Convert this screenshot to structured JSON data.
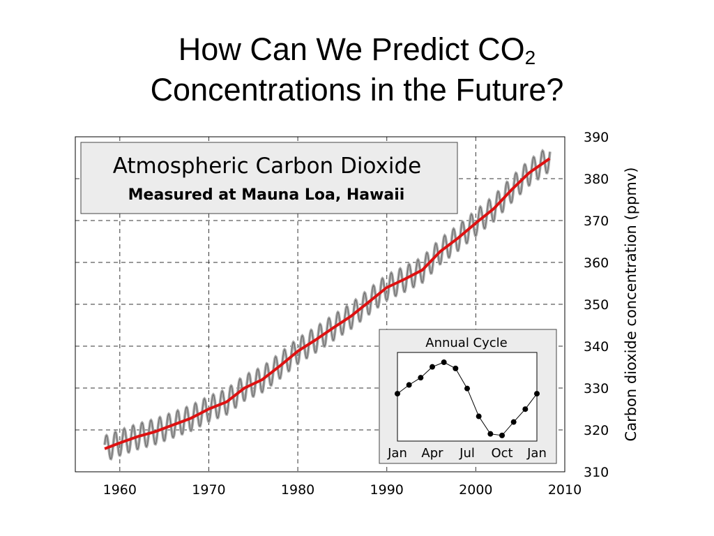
{
  "slide": {
    "title_line1": "How Can We Predict CO",
    "title_subscript": "2",
    "title_line2": "Concentrations in the Future?"
  },
  "chart_data": [
    {
      "type": "line",
      "title": "Atmospheric Carbon Dioxide",
      "subtitle": "Measured at Mauna Loa, Hawaii",
      "xlabel": "",
      "ylabel": "Carbon dioxide concentration (ppmv)",
      "xlim": [
        1955,
        2010
      ],
      "ylim": [
        310,
        390
      ],
      "x_ticks": [
        1960,
        1970,
        1980,
        1990,
        2000,
        2010
      ],
      "y_ticks": [
        310,
        320,
        330,
        340,
        350,
        360,
        370,
        380,
        390
      ],
      "y_axis_position": "right",
      "grid": true,
      "colors": {
        "trend": "#dd1111",
        "monthly": "#aaaaaa"
      },
      "seasonal_amplitude_ppmv": 3,
      "series": [
        {
          "x": [
            1958.3,
            1960,
            1962,
            1964,
            1966,
            1968,
            1970,
            1972,
            1974,
            1976,
            1978,
            1980,
            1982,
            1984,
            1986,
            1988,
            1990,
            1992,
            1994,
            1996,
            1998,
            2000,
            2002,
            2004,
            2006,
            2008.3
          ],
          "y": [
            315.5,
            316.9,
            318.4,
            319.6,
            321.2,
            322.8,
            325.0,
            326.7,
            330.0,
            332.0,
            335.3,
            338.8,
            341.5,
            344.4,
            347.2,
            350.6,
            354.0,
            356.0,
            358.2,
            362.6,
            365.8,
            369.4,
            372.8,
            377.3,
            381.4,
            384.8
          ]
        }
      ]
    },
    {
      "type": "line",
      "title": "Annual Cycle",
      "x_tick_labels": [
        "Jan",
        "Apr",
        "Jul",
        "Oct",
        "Jan"
      ],
      "series": [
        {
          "x": [
            0,
            1,
            2,
            3,
            4,
            5,
            6,
            7,
            8,
            9,
            10,
            11,
            12
          ],
          "y": [
            0.0,
            0.85,
            1.55,
            2.6,
            3.05,
            2.45,
            0.5,
            -2.2,
            -3.9,
            -4.05,
            -2.75,
            -1.5,
            0.0
          ]
        }
      ]
    }
  ]
}
